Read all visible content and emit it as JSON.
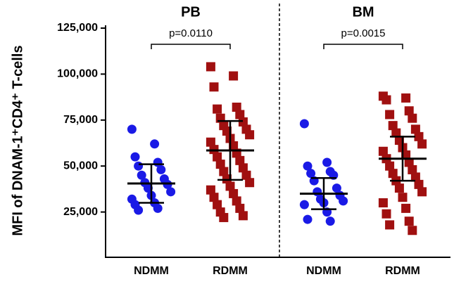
{
  "chart_data": {
    "type": "dot-plot",
    "y_label": "MFI of DNAM-1⁺CD4⁺ T-cells",
    "ylim": [
      0,
      125000
    ],
    "yticks": [
      {
        "value": 25000,
        "label": "25,000"
      },
      {
        "value": 50000,
        "label": "50,000"
      },
      {
        "value": 75000,
        "label": "75,000"
      },
      {
        "value": 100000,
        "label": "100,000"
      },
      {
        "value": 125000,
        "label": "125,000"
      }
    ],
    "panels": [
      {
        "title": "PB",
        "p_value": "p=0.0110",
        "groups": [
          {
            "name": "NDMM",
            "color": "#1a1ae6",
            "marker": "circle",
            "mean": 40500,
            "sd": 10500,
            "values": [
              70000,
              62000,
              55000,
              52000,
              50000,
              48000,
              45000,
              43000,
              41000,
              40000,
              38000,
              36000,
              34000,
              32000,
              30000,
              29000,
              27000,
              26000
            ]
          },
          {
            "name": "RDMM",
            "color": "#a01010",
            "marker": "square",
            "mean": 58500,
            "sd": 16000,
            "values": [
              104000,
              99000,
              93000,
              82000,
              81000,
              78000,
              76000,
              74000,
              72000,
              70000,
              69000,
              67000,
              65000,
              63000,
              61000,
              59000,
              57000,
              55000,
              53000,
              51000,
              49000,
              47000,
              45000,
              43000,
              41000,
              39000,
              37000,
              35000,
              33000,
              31000,
              29000,
              27000,
              25000,
              23000,
              22000
            ]
          }
        ]
      },
      {
        "title": "BM",
        "p_value": "p=0.0015",
        "groups": [
          {
            "name": "NDMM",
            "color": "#1a1ae6",
            "marker": "circle",
            "mean": 35000,
            "sd": 8500,
            "values": [
              73000,
              52000,
              50000,
              47000,
              46000,
              45000,
              42000,
              38000,
              36000,
              34000,
              32000,
              31000,
              30000,
              29000,
              25000,
              21000,
              20000
            ]
          },
          {
            "name": "RDMM",
            "color": "#a01010",
            "marker": "square",
            "mean": 54000,
            "sd": 12000,
            "values": [
              88000,
              87000,
              86000,
              80000,
              78000,
              76000,
              72000,
              70000,
              68000,
              66000,
              64000,
              62000,
              60000,
              58000,
              56000,
              54000,
              52000,
              50000,
              48000,
              46000,
              44000,
              42000,
              40000,
              38000,
              36000,
              33000,
              30000,
              27000,
              24000,
              20000,
              18000,
              15000
            ]
          }
        ]
      }
    ]
  }
}
